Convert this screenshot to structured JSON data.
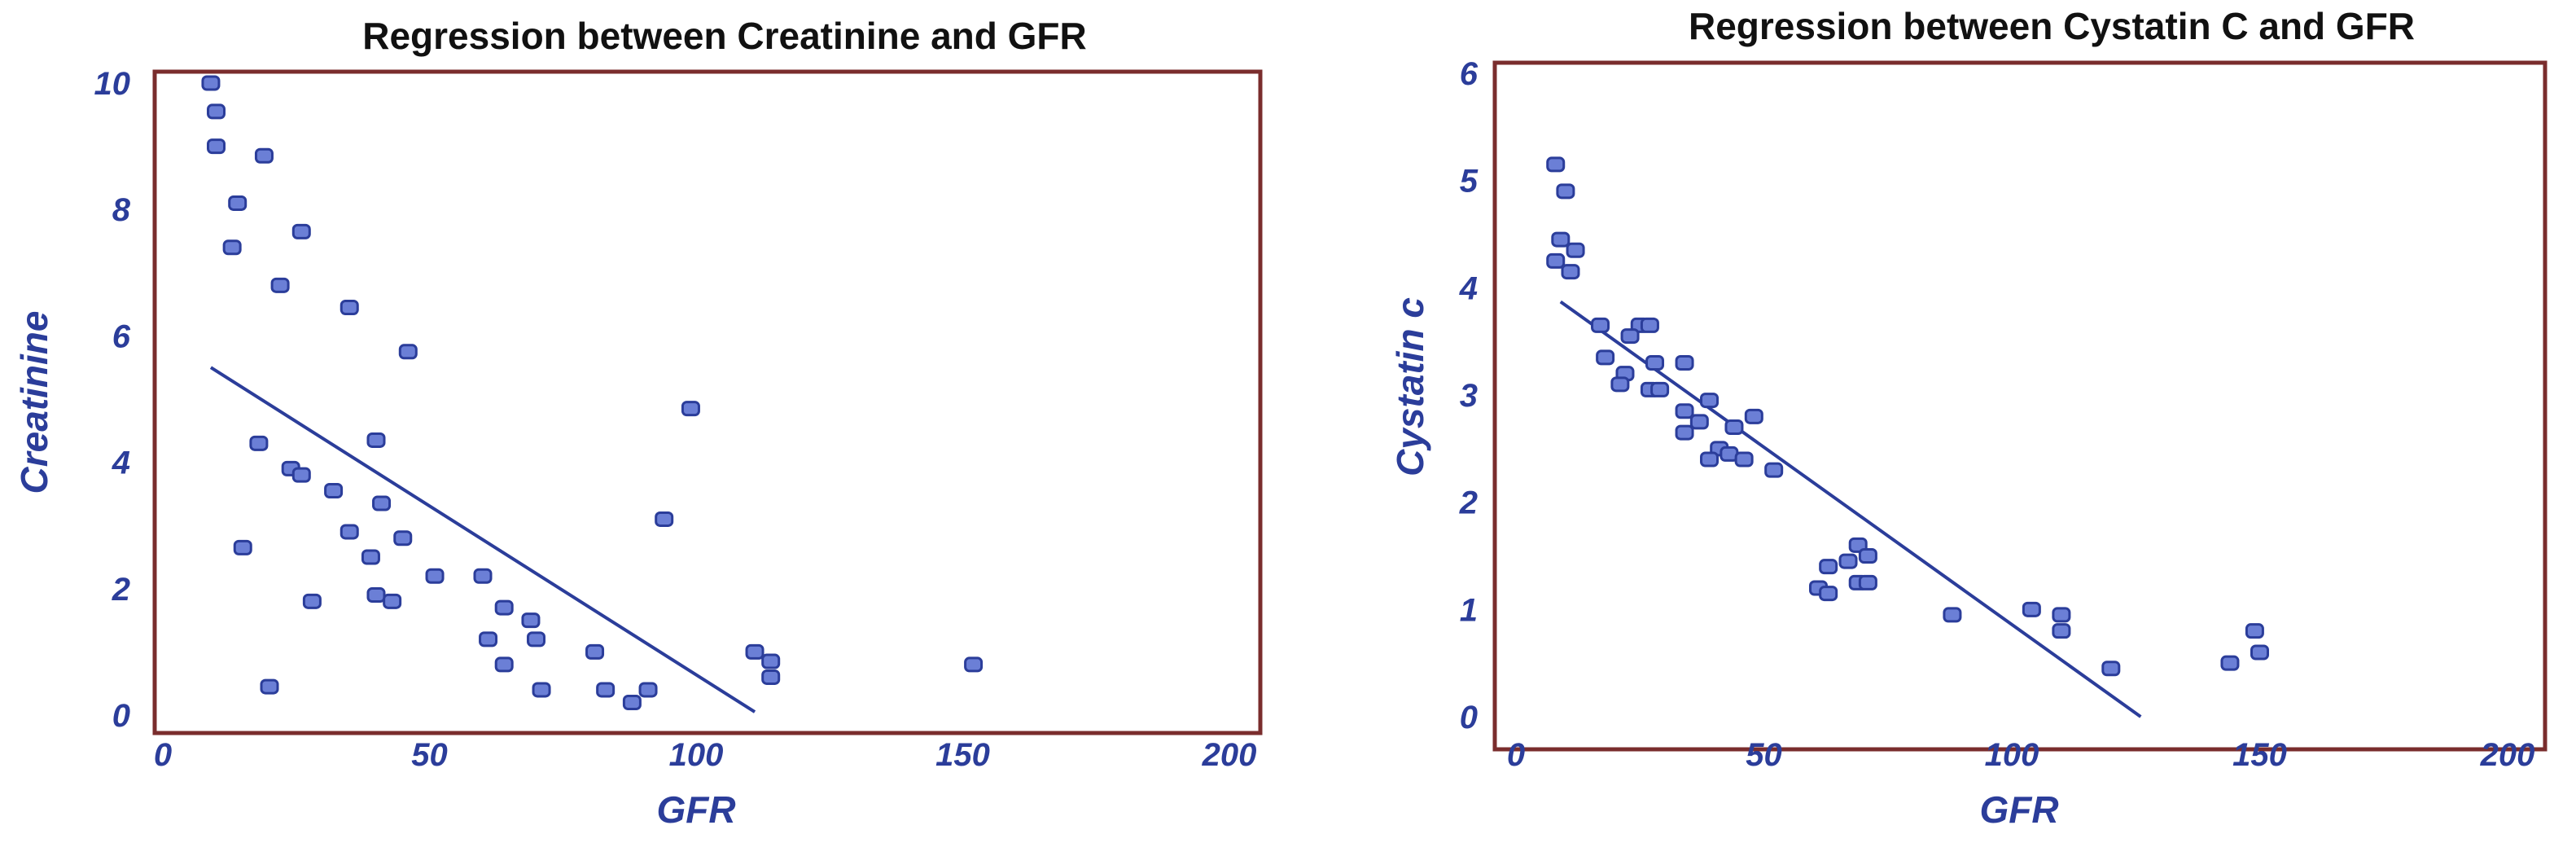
{
  "charts_meta": {
    "accent": "#2b3d9a",
    "marker_fill": "#6b7fd6",
    "frame": "#7a2d2d"
  },
  "chart_data": [
    {
      "type": "scatter",
      "title": "Regression between Creatinine and  GFR",
      "xlabel": "GFR",
      "ylabel": "Creatinine",
      "xlim": [
        0,
        200
      ],
      "ylim": [
        0,
        10
      ],
      "xticks": [
        0,
        50,
        100,
        150,
        200
      ],
      "yticks": [
        0,
        2,
        4,
        6,
        8,
        10
      ],
      "grid": false,
      "series": [
        {
          "points": [
            [
              9,
              10.0
            ],
            [
              10,
              9.55
            ],
            [
              10,
              9.0
            ],
            [
              19,
              8.85
            ],
            [
              14,
              8.1
            ],
            [
              26,
              7.65
            ],
            [
              13,
              7.4
            ],
            [
              22,
              6.8
            ],
            [
              35,
              6.45
            ],
            [
              46,
              5.75
            ],
            [
              99,
              4.85
            ],
            [
              18,
              4.3
            ],
            [
              40,
              4.35
            ],
            [
              24,
              3.9
            ],
            [
              26,
              3.8
            ],
            [
              32,
              3.55
            ],
            [
              41,
              3.35
            ],
            [
              94,
              3.1
            ],
            [
              35,
              2.9
            ],
            [
              45,
              2.8
            ],
            [
              15,
              2.65
            ],
            [
              39,
              2.5
            ],
            [
              51,
              2.2
            ],
            [
              60,
              2.2
            ],
            [
              40,
              1.9
            ],
            [
              43,
              1.8
            ],
            [
              28,
              1.8
            ],
            [
              64,
              1.7
            ],
            [
              69,
              1.5
            ],
            [
              61,
              1.2
            ],
            [
              70,
              1.2
            ],
            [
              111,
              1.0
            ],
            [
              81,
              1.0
            ],
            [
              114,
              0.85
            ],
            [
              64,
              0.8
            ],
            [
              152,
              0.8
            ],
            [
              114,
              0.6
            ],
            [
              20,
              0.45
            ],
            [
              71,
              0.4
            ],
            [
              83,
              0.4
            ],
            [
              91,
              0.4
            ],
            [
              88,
              0.2
            ]
          ]
        }
      ],
      "regression": {
        "x": [
          9,
          111
        ],
        "y": [
          5.5,
          0.05
        ]
      }
    },
    {
      "type": "scatter",
      "title": "Regression between  Cystatin C and  GFR",
      "xlabel": "GFR",
      "ylabel": "Cystatin c",
      "xlim": [
        0,
        200
      ],
      "ylim": [
        0,
        6
      ],
      "xticks": [
        0,
        50,
        100,
        150,
        200
      ],
      "yticks": [
        0,
        1,
        2,
        3,
        4,
        5,
        6
      ],
      "grid": false,
      "series": [
        {
          "points": [
            [
              8,
              5.15
            ],
            [
              10,
              4.9
            ],
            [
              9,
              4.45
            ],
            [
              12,
              4.35
            ],
            [
              8,
              4.25
            ],
            [
              11,
              4.15
            ],
            [
              17,
              3.65
            ],
            [
              25,
              3.65
            ],
            [
              27,
              3.65
            ],
            [
              23,
              3.55
            ],
            [
              18,
              3.35
            ],
            [
              28,
              3.3
            ],
            [
              34,
              3.3
            ],
            [
              22,
              3.2
            ],
            [
              21,
              3.1
            ],
            [
              27,
              3.05
            ],
            [
              29,
              3.05
            ],
            [
              39,
              2.95
            ],
            [
              34,
              2.85
            ],
            [
              48,
              2.8
            ],
            [
              37,
              2.75
            ],
            [
              44,
              2.7
            ],
            [
              34,
              2.65
            ],
            [
              41,
              2.5
            ],
            [
              43,
              2.45
            ],
            [
              39,
              2.4
            ],
            [
              46,
              2.4
            ],
            [
              52,
              2.3
            ],
            [
              69,
              1.6
            ],
            [
              71,
              1.5
            ],
            [
              67,
              1.45
            ],
            [
              63,
              1.4
            ],
            [
              69,
              1.25
            ],
            [
              71,
              1.25
            ],
            [
              61,
              1.2
            ],
            [
              63,
              1.15
            ],
            [
              104,
              1.0
            ],
            [
              110,
              0.95
            ],
            [
              88,
              0.95
            ],
            [
              149,
              0.8
            ],
            [
              110,
              0.8
            ],
            [
              150,
              0.6
            ],
            [
              144,
              0.5
            ],
            [
              120,
              0.45
            ]
          ]
        }
      ],
      "regression": {
        "x": [
          9,
          126
        ],
        "y": [
          3.87,
          0.0
        ]
      }
    }
  ]
}
